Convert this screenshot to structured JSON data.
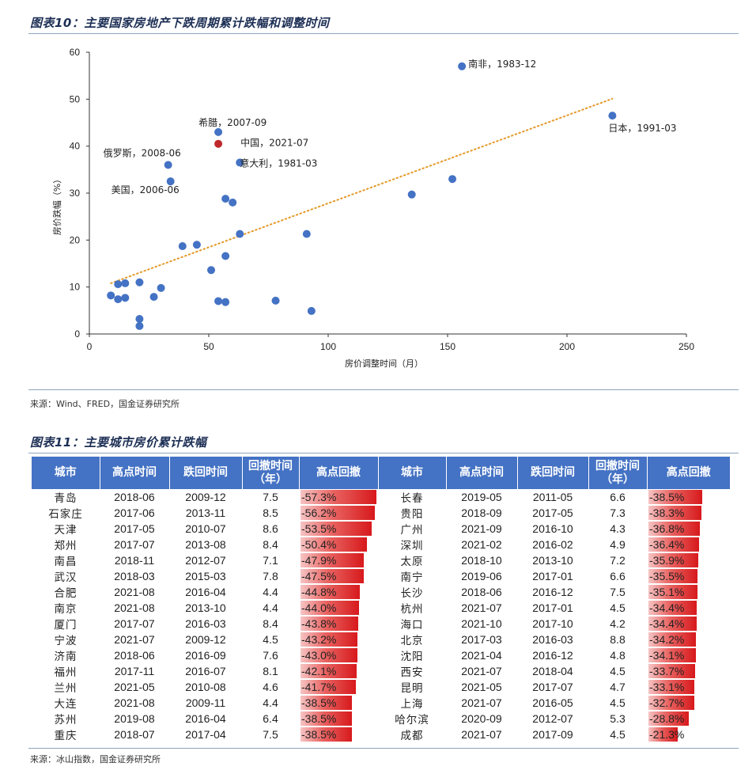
{
  "figure10": {
    "title": "图表10：主要国家房地产下跌周期累计跌幅和调整时间",
    "source": "来源：Wind、FRED，国金证券研究所"
  },
  "chart_data": {
    "type": "scatter",
    "xlabel": "房价调整时间（月）",
    "ylabel": "房价跌幅（%）",
    "xlim": [
      0,
      250
    ],
    "ylim": [
      0,
      60
    ],
    "xticks": [
      "0",
      "50",
      "100",
      "150",
      "200",
      "250"
    ],
    "yticks": [
      "0",
      "10",
      "20",
      "30",
      "40",
      "50",
      "60"
    ],
    "grid": false,
    "points": [
      {
        "x": 156,
        "y": 57,
        "label": "南非，1983-12",
        "color": "#4472c4"
      },
      {
        "x": 219,
        "y": 46.5,
        "label": "日本，1991-03",
        "color": "#4472c4"
      },
      {
        "x": 54,
        "y": 43,
        "label": "希腊，2007-09",
        "color": "#4472c4"
      },
      {
        "x": 54,
        "y": 40.5,
        "label": "中国，2021-07",
        "color": "#c0282a"
      },
      {
        "x": 63,
        "y": 36.5,
        "label": "意大利，1981-03",
        "color": "#4472c4"
      },
      {
        "x": 33,
        "y": 36,
        "label": "俄罗斯，2008-06",
        "color": "#4472c4"
      },
      {
        "x": 34,
        "y": 32.5,
        "label": "美国，2006-06",
        "color": "#4472c4"
      },
      {
        "x": 152,
        "y": 33,
        "label": "",
        "color": "#4472c4"
      },
      {
        "x": 135,
        "y": 29.7,
        "label": "",
        "color": "#4472c4"
      },
      {
        "x": 57,
        "y": 28.8,
        "label": "",
        "color": "#4472c4"
      },
      {
        "x": 60,
        "y": 28,
        "label": "",
        "color": "#4472c4"
      },
      {
        "x": 63,
        "y": 21.3,
        "label": "",
        "color": "#4472c4"
      },
      {
        "x": 91,
        "y": 21.3,
        "label": "",
        "color": "#4472c4"
      },
      {
        "x": 45,
        "y": 19,
        "label": "",
        "color": "#4472c4"
      },
      {
        "x": 39,
        "y": 18.7,
        "label": "",
        "color": "#4472c4"
      },
      {
        "x": 57,
        "y": 16.6,
        "label": "",
        "color": "#4472c4"
      },
      {
        "x": 51,
        "y": 13.6,
        "label": "",
        "color": "#4472c4"
      },
      {
        "x": 12,
        "y": 10.6,
        "label": "",
        "color": "#4472c4"
      },
      {
        "x": 15,
        "y": 10.8,
        "label": "",
        "color": "#4472c4"
      },
      {
        "x": 21,
        "y": 11,
        "label": "",
        "color": "#4472c4"
      },
      {
        "x": 30,
        "y": 9.8,
        "label": "",
        "color": "#4472c4"
      },
      {
        "x": 9,
        "y": 8.2,
        "label": "",
        "color": "#4472c4"
      },
      {
        "x": 12,
        "y": 7.4,
        "label": "",
        "color": "#4472c4"
      },
      {
        "x": 15,
        "y": 7.7,
        "label": "",
        "color": "#4472c4"
      },
      {
        "x": 27,
        "y": 7.9,
        "label": "",
        "color": "#4472c4"
      },
      {
        "x": 54,
        "y": 7,
        "label": "",
        "color": "#4472c4"
      },
      {
        "x": 57,
        "y": 6.8,
        "label": "",
        "color": "#4472c4"
      },
      {
        "x": 78,
        "y": 7.1,
        "label": "",
        "color": "#4472c4"
      },
      {
        "x": 93,
        "y": 4.9,
        "label": "",
        "color": "#4472c4"
      },
      {
        "x": 21,
        "y": 3.2,
        "label": "",
        "color": "#4472c4"
      },
      {
        "x": 21,
        "y": 1.7,
        "label": "",
        "color": "#4472c4"
      }
    ],
    "trendline": {
      "style": "dotted",
      "color": "#e49a2a",
      "from": [
        9,
        10.8
      ],
      "to": [
        219,
        50.1
      ]
    }
  },
  "figure11": {
    "title": "图表11：主要城市房价累计跌幅",
    "source": "来源：冰山指数，国金证券研究所",
    "headers": [
      "城市",
      "高点时间",
      "跌回时间",
      "回撤时间（年）",
      "高点回撤",
      "城市",
      "高点时间",
      "跌回时间",
      "回撤时间（年）",
      "高点回撤"
    ],
    "rows": [
      [
        {
          "city": "青岛",
          "peak": "2018-06",
          "back": "2009-12",
          "years": "7.5",
          "dd": "-57.3%",
          "v": 57.3
        },
        {
          "city": "长春",
          "peak": "2019-05",
          "back": "2011-05",
          "years": "6.6",
          "dd": "-38.5%",
          "v": 38.5
        }
      ],
      [
        {
          "city": "石家庄",
          "peak": "2017-06",
          "back": "2013-11",
          "years": "8.5",
          "dd": "-56.2%",
          "v": 56.2
        },
        {
          "city": "贵阳",
          "peak": "2018-09",
          "back": "2017-05",
          "years": "7.3",
          "dd": "-38.3%",
          "v": 38.3
        }
      ],
      [
        {
          "city": "天津",
          "peak": "2017-05",
          "back": "2010-07",
          "years": "8.6",
          "dd": "-53.5%",
          "v": 53.5
        },
        {
          "city": "广州",
          "peak": "2021-09",
          "back": "2016-10",
          "years": "4.3",
          "dd": "-36.8%",
          "v": 36.8
        }
      ],
      [
        {
          "city": "郑州",
          "peak": "2017-07",
          "back": "2013-08",
          "years": "8.4",
          "dd": "-50.4%",
          "v": 50.4
        },
        {
          "city": "深圳",
          "peak": "2021-02",
          "back": "2016-02",
          "years": "4.9",
          "dd": "-36.4%",
          "v": 36.4
        }
      ],
      [
        {
          "city": "南昌",
          "peak": "2018-11",
          "back": "2012-07",
          "years": "7.1",
          "dd": "-47.9%",
          "v": 47.9
        },
        {
          "city": "太原",
          "peak": "2018-10",
          "back": "2013-10",
          "years": "7.2",
          "dd": "-35.9%",
          "v": 35.9
        }
      ],
      [
        {
          "city": "武汉",
          "peak": "2018-03",
          "back": "2015-03",
          "years": "7.8",
          "dd": "-47.5%",
          "v": 47.5
        },
        {
          "city": "南宁",
          "peak": "2019-06",
          "back": "2017-01",
          "years": "6.6",
          "dd": "-35.5%",
          "v": 35.5
        }
      ],
      [
        {
          "city": "合肥",
          "peak": "2021-08",
          "back": "2016-04",
          "years": "4.4",
          "dd": "-44.8%",
          "v": 44.8
        },
        {
          "city": "长沙",
          "peak": "2018-06",
          "back": "2016-12",
          "years": "7.5",
          "dd": "-35.1%",
          "v": 35.1
        }
      ],
      [
        {
          "city": "南京",
          "peak": "2021-08",
          "back": "2013-10",
          "years": "4.4",
          "dd": "-44.0%",
          "v": 44.0
        },
        {
          "city": "杭州",
          "peak": "2021-07",
          "back": "2017-01",
          "years": "4.5",
          "dd": "-34.4%",
          "v": 34.4
        }
      ],
      [
        {
          "city": "厦门",
          "peak": "2017-07",
          "back": "2016-03",
          "years": "8.4",
          "dd": "-43.8%",
          "v": 43.8
        },
        {
          "city": "海口",
          "peak": "2021-10",
          "back": "2017-10",
          "years": "4.2",
          "dd": "-34.4%",
          "v": 34.4
        }
      ],
      [
        {
          "city": "宁波",
          "peak": "2021-07",
          "back": "2009-12",
          "years": "4.5",
          "dd": "-43.2%",
          "v": 43.2
        },
        {
          "city": "北京",
          "peak": "2017-03",
          "back": "2016-03",
          "years": "8.8",
          "dd": "-34.2%",
          "v": 34.2
        }
      ],
      [
        {
          "city": "济南",
          "peak": "2018-06",
          "back": "2016-09",
          "years": "7.6",
          "dd": "-43.0%",
          "v": 43.0
        },
        {
          "city": "沈阳",
          "peak": "2021-04",
          "back": "2016-12",
          "years": "4.8",
          "dd": "-34.1%",
          "v": 34.1
        }
      ],
      [
        {
          "city": "福州",
          "peak": "2017-11",
          "back": "2016-07",
          "years": "8.1",
          "dd": "-42.1%",
          "v": 42.1
        },
        {
          "city": "西安",
          "peak": "2021-07",
          "back": "2018-04",
          "years": "4.5",
          "dd": "-33.7%",
          "v": 33.7
        }
      ],
      [
        {
          "city": "兰州",
          "peak": "2021-05",
          "back": "2010-08",
          "years": "4.6",
          "dd": "-41.7%",
          "v": 41.7
        },
        {
          "city": "昆明",
          "peak": "2021-05",
          "back": "2017-07",
          "years": "4.7",
          "dd": "-33.1%",
          "v": 33.1
        }
      ],
      [
        {
          "city": "大连",
          "peak": "2021-08",
          "back": "2009-11",
          "years": "4.4",
          "dd": "-38.5%",
          "v": 38.5
        },
        {
          "city": "上海",
          "peak": "2021-07",
          "back": "2016-05",
          "years": "4.5",
          "dd": "-32.7%",
          "v": 32.7
        }
      ],
      [
        {
          "city": "苏州",
          "peak": "2019-08",
          "back": "2016-04",
          "years": "6.4",
          "dd": "-38.5%",
          "v": 38.5
        },
        {
          "city": "哈尔滨",
          "peak": "2020-09",
          "back": "2012-07",
          "years": "5.3",
          "dd": "-28.8%",
          "v": 28.8
        }
      ],
      [
        {
          "city": "重庆",
          "peak": "2018-07",
          "back": "2017-04",
          "years": "7.5",
          "dd": "-38.5%",
          "v": 38.5
        },
        {
          "city": "成都",
          "peak": "2021-07",
          "back": "2017-09",
          "years": "4.5",
          "dd": "-21.3%",
          "v": 21.3
        }
      ]
    ],
    "bar_max": 57.3
  }
}
